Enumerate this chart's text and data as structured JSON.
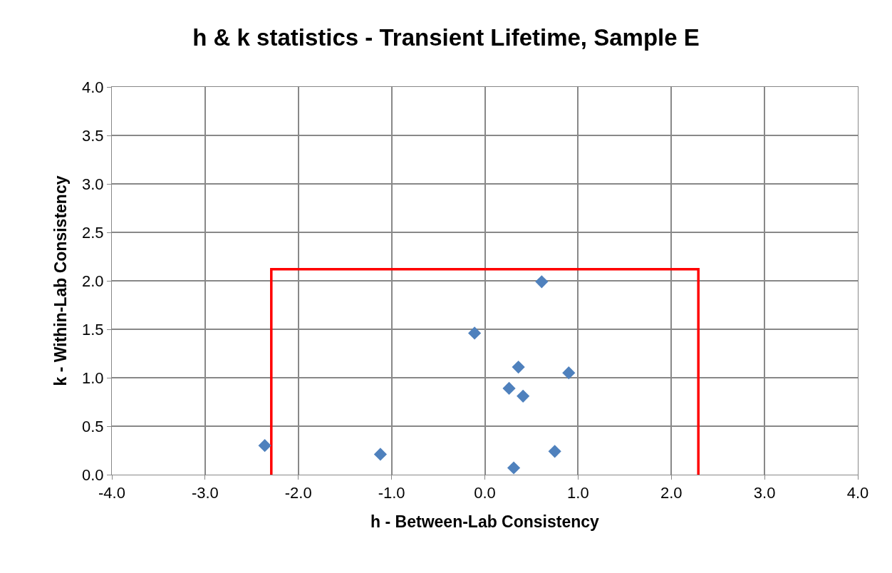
{
  "chart_data": {
    "type": "scatter",
    "title": "h & k statistics - Transient Lifetime, Sample E",
    "xlabel": "h - Between-Lab Consistency",
    "ylabel": "k - Within-Lab Consistency",
    "xlim": [
      -4,
      4
    ],
    "xticks": [
      {
        "value": -4,
        "label": "-4.0"
      },
      {
        "value": -3,
        "label": "-3.0"
      },
      {
        "value": -2,
        "label": "-2.0"
      },
      {
        "value": -1,
        "label": "-1.0"
      },
      {
        "value": 0,
        "label": "0.0"
      },
      {
        "value": 1,
        "label": "1.0"
      },
      {
        "value": 2,
        "label": "2.0"
      },
      {
        "value": 3,
        "label": "3.0"
      },
      {
        "value": 4,
        "label": "4.0"
      }
    ],
    "ylim": [
      0,
      4
    ],
    "yticks": [
      {
        "value": 0,
        "label": "0.0"
      },
      {
        "value": 0.5,
        "label": "0.5"
      },
      {
        "value": 1,
        "label": "1.0"
      },
      {
        "value": 1.5,
        "label": "1.5"
      },
      {
        "value": 2,
        "label": "2.0"
      },
      {
        "value": 2.5,
        "label": "2.5"
      },
      {
        "value": 3,
        "label": "3.0"
      },
      {
        "value": 3.5,
        "label": "3.5"
      },
      {
        "value": 4,
        "label": "4.0"
      }
    ],
    "grid": true,
    "series": [
      {
        "type": "line",
        "color": "#ff0000",
        "line_style": "solid",
        "marker": "none",
        "x": [
          -2.29,
          -2.29,
          2.29,
          2.29
        ],
        "values": [
          0,
          2.12,
          2.12,
          0
        ]
      },
      {
        "color": "#4f81bd",
        "marker": "diamond",
        "x": [
          -2.36,
          -1.12,
          -0.11,
          0.61,
          0.36,
          0.9,
          0.26,
          0.41,
          0.75,
          0.31
        ],
        "values": [
          0.3,
          0.21,
          1.46,
          1.99,
          1.11,
          1.05,
          0.89,
          0.81,
          0.24,
          0.07
        ]
      }
    ]
  }
}
